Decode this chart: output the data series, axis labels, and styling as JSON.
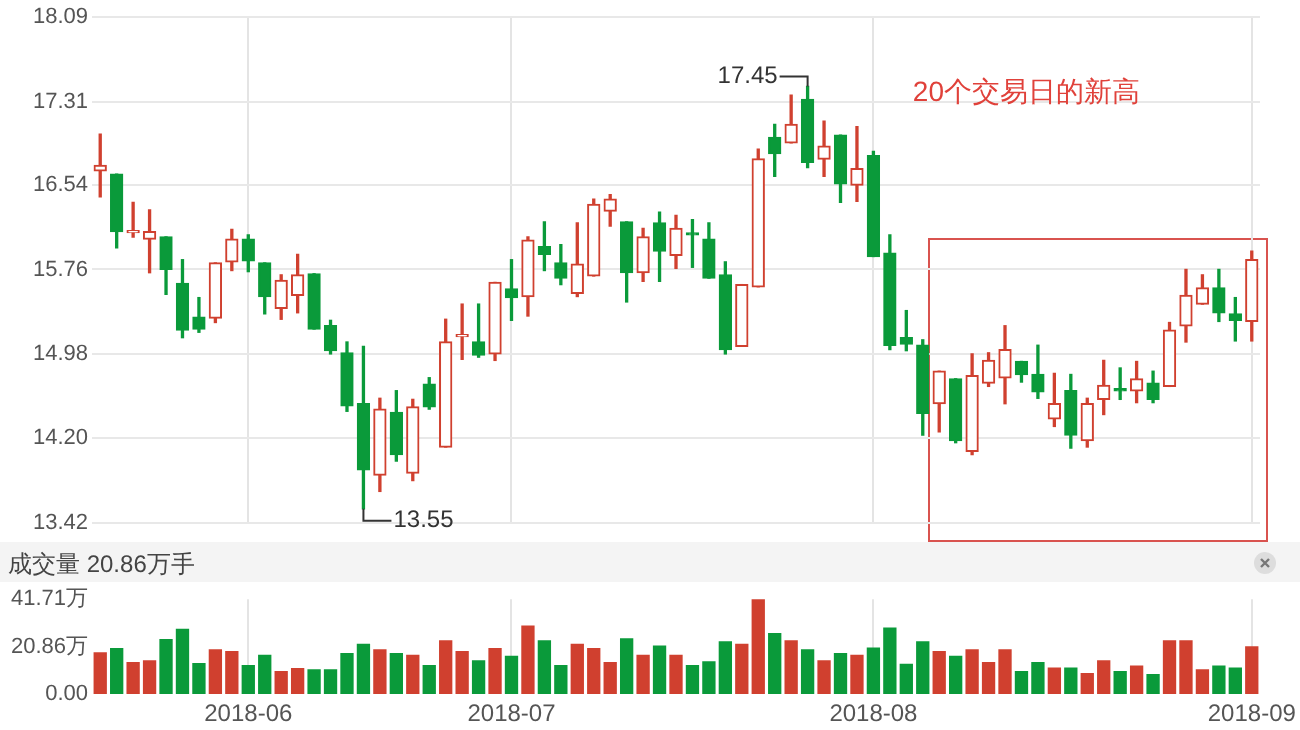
{
  "chart_data": [
    {
      "type": "candlestick",
      "categories": [
        null,
        null,
        null,
        null,
        null,
        null,
        null,
        null,
        null,
        "2018-06",
        null,
        null,
        null,
        null,
        null,
        null,
        null,
        null,
        null,
        null,
        null,
        null,
        null,
        null,
        null,
        "2018-07",
        null,
        null,
        null,
        null,
        null,
        null,
        null,
        null,
        null,
        null,
        null,
        null,
        null,
        null,
        null,
        null,
        null,
        null,
        null,
        null,
        null,
        "2018-08",
        null,
        null,
        null,
        null,
        null,
        null,
        null,
        null,
        null,
        null,
        null,
        null,
        null,
        null,
        null,
        null,
        null,
        null,
        null,
        null,
        null,
        null,
        "2018-09"
      ],
      "ohlc": [
        [
          16.67,
          17.01,
          16.43,
          16.72
        ],
        [
          16.64,
          16.64,
          15.96,
          16.11
        ],
        [
          16.1,
          16.38,
          16.06,
          16.11
        ],
        [
          16.04,
          16.31,
          15.73,
          16.11
        ],
        [
          16.06,
          16.06,
          15.53,
          15.76
        ],
        [
          15.63,
          15.85,
          15.13,
          15.2
        ],
        [
          15.32,
          15.5,
          15.18,
          15.21
        ],
        [
          15.31,
          15.82,
          15.27,
          15.82
        ],
        [
          15.83,
          16.13,
          15.75,
          16.04
        ],
        [
          16.04,
          16.08,
          15.74,
          15.84
        ],
        [
          15.82,
          15.82,
          15.35,
          15.51
        ],
        [
          15.4,
          15.71,
          15.3,
          15.66
        ],
        [
          15.52,
          15.9,
          15.36,
          15.71
        ],
        [
          15.72,
          15.72,
          15.21,
          15.21
        ],
        [
          15.24,
          15.29,
          14.98,
          15.01
        ],
        [
          14.99,
          15.09,
          14.45,
          14.5
        ],
        [
          14.52,
          15.05,
          13.55,
          13.91
        ],
        [
          13.86,
          14.57,
          13.71,
          14.47
        ],
        [
          14.44,
          14.64,
          13.99,
          14.05
        ],
        [
          13.88,
          14.56,
          13.81,
          14.49
        ],
        [
          14.7,
          14.76,
          14.47,
          14.49
        ],
        [
          14.12,
          15.3,
          14.12,
          15.09
        ],
        [
          15.14,
          15.44,
          14.93,
          15.15
        ],
        [
          15.09,
          15.44,
          14.95,
          14.97
        ],
        [
          14.98,
          15.64,
          14.92,
          15.64
        ],
        [
          15.58,
          15.85,
          15.29,
          15.5
        ],
        [
          15.51,
          16.06,
          15.33,
          16.03
        ],
        [
          15.97,
          16.2,
          15.75,
          15.9
        ],
        [
          15.82,
          15.99,
          15.62,
          15.68
        ],
        [
          15.54,
          16.19,
          15.51,
          15.81
        ],
        [
          15.7,
          16.41,
          15.7,
          16.36
        ],
        [
          16.3,
          16.45,
          16.16,
          16.41
        ],
        [
          16.2,
          16.2,
          15.46,
          15.73
        ],
        [
          15.73,
          16.14,
          15.65,
          16.06
        ],
        [
          16.19,
          16.29,
          15.65,
          15.93
        ],
        [
          15.89,
          16.26,
          15.77,
          16.14
        ],
        [
          16.09,
          16.22,
          15.78,
          16.08
        ],
        [
          16.04,
          16.19,
          15.68,
          15.68
        ],
        [
          15.71,
          15.83,
          14.98,
          15.02
        ],
        [
          15.05,
          15.62,
          15.05,
          15.62
        ],
        [
          15.6,
          16.87,
          15.6,
          16.78
        ],
        [
          16.98,
          17.1,
          16.62,
          16.83
        ],
        [
          16.93,
          17.37,
          16.93,
          17.1
        ],
        [
          17.33,
          17.45,
          16.7,
          16.75
        ],
        [
          16.78,
          17.13,
          16.62,
          16.9
        ],
        [
          17.0,
          17.0,
          16.38,
          16.55
        ],
        [
          16.54,
          17.08,
          16.39,
          16.69
        ],
        [
          16.81,
          16.85,
          15.88,
          15.88
        ],
        [
          15.91,
          16.08,
          15.02,
          15.06
        ],
        [
          15.13,
          15.38,
          15.01,
          15.07
        ],
        [
          15.06,
          15.11,
          14.23,
          14.43
        ],
        [
          14.52,
          14.82,
          14.26,
          14.82
        ],
        [
          14.75,
          14.75,
          14.16,
          14.18
        ],
        [
          14.08,
          14.98,
          14.05,
          14.78
        ],
        [
          14.71,
          14.99,
          14.68,
          14.92
        ],
        [
          14.76,
          15.24,
          14.52,
          15.02
        ],
        [
          14.91,
          14.91,
          14.72,
          14.79
        ],
        [
          14.79,
          15.06,
          14.57,
          14.63
        ],
        [
          14.38,
          14.8,
          14.31,
          14.52
        ],
        [
          14.64,
          14.79,
          14.11,
          14.23
        ],
        [
          14.18,
          14.57,
          14.12,
          14.52
        ],
        [
          14.56,
          14.92,
          14.42,
          14.69
        ],
        [
          14.65,
          14.85,
          14.56,
          14.64
        ],
        [
          14.64,
          14.91,
          14.53,
          14.75
        ],
        [
          14.71,
          14.82,
          14.53,
          14.56
        ],
        [
          14.68,
          15.27,
          14.68,
          15.2
        ],
        [
          15.24,
          15.76,
          15.09,
          15.52
        ],
        [
          15.44,
          15.71,
          15.44,
          15.59
        ],
        [
          15.59,
          15.76,
          15.28,
          15.36
        ],
        [
          15.35,
          15.5,
          15.1,
          15.29
        ],
        [
          15.28,
          15.93,
          15.1,
          15.85
        ]
      ],
      "colors": [
        "#d0402f",
        "#0a9a3a",
        "#d0402f",
        "#d0402f",
        "#0a9a3a",
        "#0a9a3a",
        "#0a9a3a",
        "#d0402f",
        "#d0402f",
        "#0a9a3a",
        "#0a9a3a",
        "#d0402f",
        "#d0402f",
        "#0a9a3a",
        "#0a9a3a",
        "#0a9a3a",
        "#0a9a3a",
        "#d0402f",
        "#0a9a3a",
        "#d0402f",
        "#0a9a3a",
        "#d0402f",
        "#d0402f",
        "#0a9a3a",
        "#d0402f",
        "#0a9a3a",
        "#d0402f",
        "#0a9a3a",
        "#0a9a3a",
        "#d0402f",
        "#d0402f",
        "#d0402f",
        "#0a9a3a",
        "#d0402f",
        "#0a9a3a",
        "#d0402f",
        "#0a9a3a",
        "#0a9a3a",
        "#0a9a3a",
        "#d0402f",
        "#d0402f",
        "#0a9a3a",
        "#d0402f",
        "#0a9a3a",
        "#d0402f",
        "#0a9a3a",
        "#d0402f",
        "#0a9a3a",
        "#0a9a3a",
        "#0a9a3a",
        "#0a9a3a",
        "#d0402f",
        "#0a9a3a",
        "#d0402f",
        "#d0402f",
        "#d0402f",
        "#0a9a3a",
        "#0a9a3a",
        "#d0402f",
        "#0a9a3a",
        "#d0402f",
        "#d0402f",
        "#0a9a3a",
        "#d0402f",
        "#0a9a3a",
        "#d0402f",
        "#d0402f",
        "#d0402f",
        "#0a9a3a",
        "#0a9a3a",
        "#d0402f"
      ],
      "ylim": [
        13.42,
        18.09
      ],
      "yticks": [
        13.42,
        {
          "value": 14.2,
          "label": "14.20"
        },
        14.98,
        15.76,
        16.54,
        17.31,
        18.09
      ],
      "grid": true,
      "tick_labels": "y",
      "annotations": [
        "13.55",
        "17.45",
        "20个交易日的新高"
      ]
    },
    {
      "type": "bar",
      "title": "成交量 20.86万手",
      "categories": [
        null,
        null,
        null,
        null,
        null,
        null,
        null,
        null,
        null,
        "2018-06",
        null,
        null,
        null,
        null,
        null,
        null,
        null,
        null,
        null,
        null,
        null,
        null,
        null,
        null,
        null,
        "2018-07",
        null,
        null,
        null,
        null,
        null,
        null,
        null,
        null,
        null,
        null,
        null,
        null,
        null,
        null,
        null,
        null,
        null,
        null,
        null,
        null,
        null,
        "2018-08",
        null,
        null,
        null,
        null,
        null,
        null,
        null,
        null,
        null,
        null,
        null,
        null,
        null,
        null,
        null,
        null,
        null,
        null,
        null,
        null,
        null,
        null,
        "2018-09"
      ],
      "values": [
        18.1,
        19.9,
        13.8,
        14.6,
        23.9,
        28.4,
        13.3,
        19.4,
        18.6,
        12.5,
        17.0,
        9.8,
        11.2,
        10.6,
        10.6,
        17.8,
        21.8,
        19.4,
        17.8,
        17.0,
        12.5,
        23.4,
        18.6,
        14.6,
        19.9,
        16.5,
        29.8,
        23.4,
        12.5,
        21.8,
        19.9,
        13.8,
        24.2,
        17.0,
        21.0,
        17.0,
        12.5,
        14.1,
        22.9,
        21.8,
        41.71,
        26.6,
        23.4,
        19.4,
        14.6,
        17.8,
        17.0,
        20.2,
        29.0,
        13.0,
        22.9,
        18.6,
        16.5,
        19.4,
        13.8,
        19.4,
        9.8,
        13.8,
        11.4,
        11.4,
        9.0,
        14.6,
        9.8,
        12.2,
        8.5,
        23.4,
        23.4,
        10.6,
        12.2,
        11.4,
        20.7
      ],
      "colors": [
        "#d0402f",
        "#0a9a3a",
        "#d0402f",
        "#d0402f",
        "#0a9a3a",
        "#0a9a3a",
        "#0a9a3a",
        "#d0402f",
        "#d0402f",
        "#0a9a3a",
        "#0a9a3a",
        "#d0402f",
        "#d0402f",
        "#0a9a3a",
        "#0a9a3a",
        "#0a9a3a",
        "#0a9a3a",
        "#d0402f",
        "#0a9a3a",
        "#d0402f",
        "#0a9a3a",
        "#d0402f",
        "#d0402f",
        "#0a9a3a",
        "#d0402f",
        "#0a9a3a",
        "#d0402f",
        "#0a9a3a",
        "#0a9a3a",
        "#d0402f",
        "#d0402f",
        "#d0402f",
        "#0a9a3a",
        "#d0402f",
        "#0a9a3a",
        "#d0402f",
        "#0a9a3a",
        "#0a9a3a",
        "#0a9a3a",
        "#d0402f",
        "#d0402f",
        "#0a9a3a",
        "#d0402f",
        "#0a9a3a",
        "#d0402f",
        "#0a9a3a",
        "#d0402f",
        "#0a9a3a",
        "#0a9a3a",
        "#0a9a3a",
        "#0a9a3a",
        "#d0402f",
        "#0a9a3a",
        "#d0402f",
        "#d0402f",
        "#d0402f",
        "#0a9a3a",
        "#0a9a3a",
        "#d0402f",
        "#0a9a3a",
        "#d0402f",
        "#d0402f",
        "#0a9a3a",
        "#d0402f",
        "#0a9a3a",
        "#d0402f",
        "#d0402f",
        "#d0402f",
        "#0a9a3a",
        "#0a9a3a",
        "#d0402f"
      ],
      "ylim": [
        0,
        41.71
      ],
      "yticks": [
        {
          "value": 0,
          "label": "0.00"
        },
        {
          "value": 20.86,
          "label": "20.86万"
        },
        {
          "value": 41.71,
          "label": "41.71万"
        }
      ],
      "grid": "x"
    }
  ]
}
